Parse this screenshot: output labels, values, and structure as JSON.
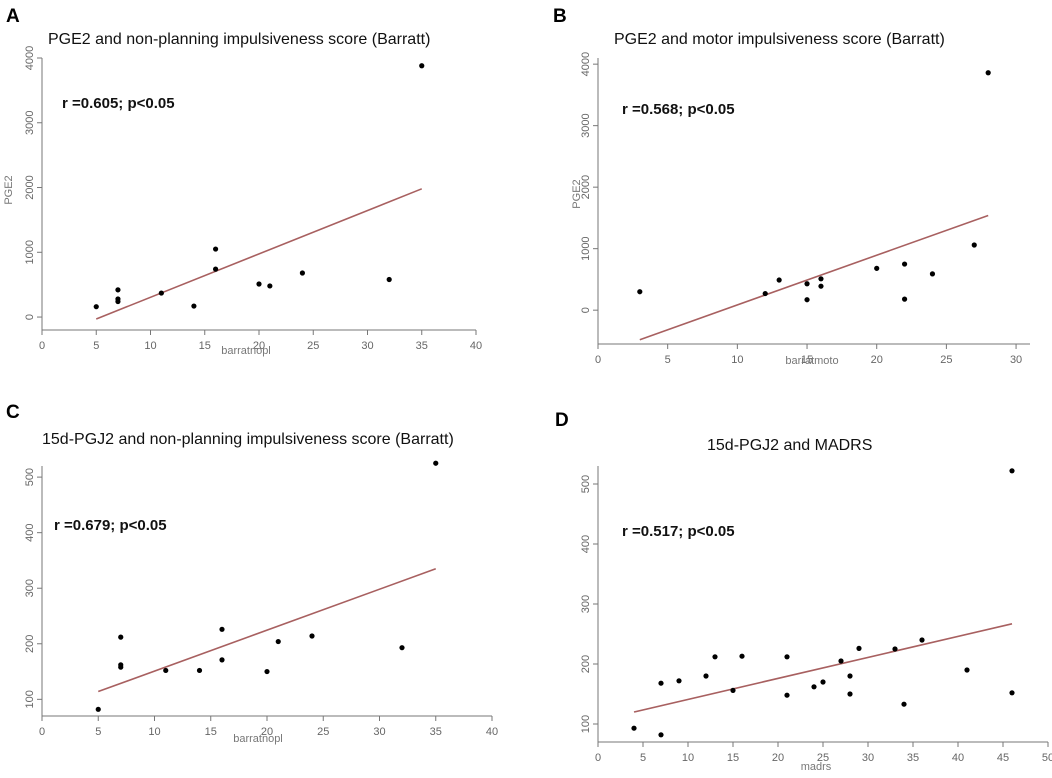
{
  "chart_data": [
    {
      "type": "scatter",
      "panel": "A",
      "title": "PGE2 and non-planning impulsiveness score (Barratt)",
      "annotation": "r =0.605; p<0.05",
      "xlabel": "barratnopl",
      "ylabel": "PGE2",
      "xlim": [
        0,
        40
      ],
      "ylim": [
        -200,
        4000
      ],
      "xticks": [
        0,
        5,
        10,
        15,
        20,
        25,
        30,
        35,
        40
      ],
      "yticks": [
        0,
        1000,
        2000,
        3000,
        4000
      ],
      "points": [
        [
          5,
          160
        ],
        [
          7,
          420
        ],
        [
          7,
          280
        ],
        [
          7,
          240
        ],
        [
          11,
          370
        ],
        [
          14,
          170
        ],
        [
          16,
          1050
        ],
        [
          16,
          740
        ],
        [
          20,
          510
        ],
        [
          21,
          480
        ],
        [
          24,
          680
        ],
        [
          32,
          580
        ],
        [
          35,
          3880
        ]
      ],
      "fit_line": [
        [
          5,
          -30
        ],
        [
          35,
          1980
        ]
      ]
    },
    {
      "type": "scatter",
      "panel": "B",
      "title": "PGE2 and motor impulsiveness score (Barratt)",
      "annotation": "r =0.568; p<0.05",
      "xlabel": "barratmoto",
      "ylabel": "PGE2",
      "xlim": [
        0,
        31
      ],
      "ylim": [
        -550,
        4100
      ],
      "xticks": [
        0,
        5,
        10,
        15,
        20,
        25,
        30
      ],
      "yticks": [
        0,
        1000,
        2000,
        3000,
        4000
      ],
      "points": [
        [
          3,
          300
        ],
        [
          12,
          270
        ],
        [
          13,
          490
        ],
        [
          15,
          430
        ],
        [
          15,
          170
        ],
        [
          16,
          510
        ],
        [
          16,
          390
        ],
        [
          20,
          680
        ],
        [
          22,
          750
        ],
        [
          22,
          180
        ],
        [
          24,
          590
        ],
        [
          27,
          1060
        ],
        [
          28,
          3860
        ]
      ],
      "fit_line": [
        [
          3,
          -480
        ],
        [
          28,
          1540
        ]
      ]
    },
    {
      "type": "scatter",
      "panel": "C",
      "title": "15d-PGJ2 and non-planning impulsiveness score (Barratt)",
      "annotation": "r =0.679; p<0.05",
      "xlabel": "barratnopl",
      "ylabel": "",
      "xlim": [
        0,
        40
      ],
      "ylim": [
        70,
        520
      ],
      "xticks": [
        0,
        5,
        10,
        15,
        20,
        25,
        30,
        35,
        40
      ],
      "yticks": [
        100,
        200,
        300,
        400,
        500
      ],
      "points": [
        [
          5,
          82
        ],
        [
          7,
          212
        ],
        [
          7,
          162
        ],
        [
          7,
          158
        ],
        [
          11,
          152
        ],
        [
          14,
          152
        ],
        [
          16,
          226
        ],
        [
          16,
          171
        ],
        [
          20,
          150
        ],
        [
          21,
          204
        ],
        [
          24,
          214
        ],
        [
          32,
          193
        ],
        [
          35,
          525
        ]
      ],
      "fit_line": [
        [
          5,
          114
        ],
        [
          35,
          335
        ]
      ]
    },
    {
      "type": "scatter",
      "panel": "D",
      "title": "15d-PGJ2 and MADRS",
      "annotation": "r =0.517; p<0.05",
      "xlabel": "madrs",
      "ylabel": "",
      "xlim": [
        0,
        50
      ],
      "ylim": [
        70,
        530
      ],
      "xticks": [
        0,
        5,
        10,
        15,
        20,
        25,
        30,
        35,
        40,
        45,
        50
      ],
      "yticks": [
        100,
        200,
        300,
        400,
        500
      ],
      "points": [
        [
          4,
          93
        ],
        [
          7,
          168
        ],
        [
          7,
          82
        ],
        [
          9,
          172
        ],
        [
          12,
          180
        ],
        [
          13,
          212
        ],
        [
          15,
          156
        ],
        [
          16,
          213
        ],
        [
          21,
          212
        ],
        [
          21,
          148
        ],
        [
          24,
          162
        ],
        [
          25,
          170
        ],
        [
          27,
          205
        ],
        [
          28,
          180
        ],
        [
          28,
          150
        ],
        [
          29,
          226
        ],
        [
          33,
          225
        ],
        [
          34,
          133
        ],
        [
          36,
          240
        ],
        [
          41,
          190
        ],
        [
          46,
          522
        ],
        [
          46,
          152
        ]
      ],
      "fit_line": [
        [
          4,
          120
        ],
        [
          46,
          267
        ]
      ]
    }
  ]
}
